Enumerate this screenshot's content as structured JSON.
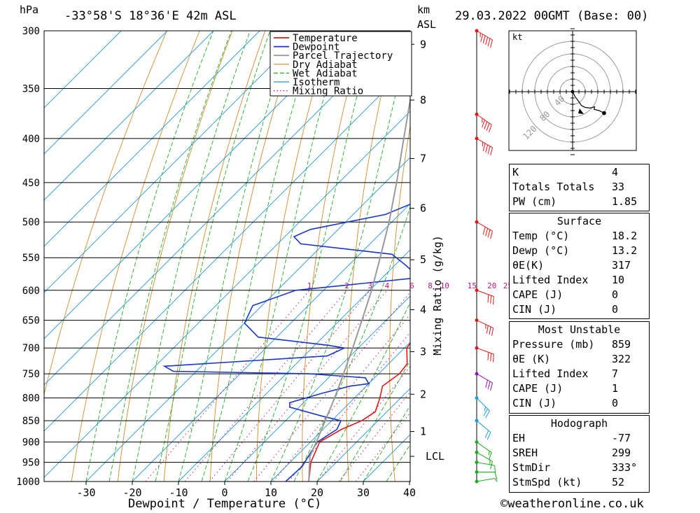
{
  "header": {
    "hpa_label": "hPa",
    "location": "-33°58'S 18°36'E 42m ASL",
    "km_label": "km",
    "asl_label": "ASL",
    "datetime": "29.03.2022 00GMT (Base: 00)"
  },
  "footer": {
    "xlabel": "Dewpoint / Temperature (°C)",
    "copyright": "©weatheronline.co.uk"
  },
  "chart_data": {
    "type": "line",
    "title": "",
    "xlabel": "Dewpoint / Temperature (°C)",
    "ylabel": "hPa",
    "y_scale": "log",
    "x_ticks": [
      -30,
      -20,
      -10,
      0,
      10,
      20,
      30,
      40
    ],
    "pressure_ticks": [
      300,
      350,
      400,
      450,
      500,
      550,
      600,
      650,
      700,
      750,
      800,
      850,
      900,
      950,
      1000
    ],
    "km_ticks": [
      {
        "p": 875,
        "label": "1"
      },
      {
        "p": 792,
        "label": "2"
      },
      {
        "p": 707,
        "label": "3"
      },
      {
        "p": 632,
        "label": "4"
      },
      {
        "p": 553,
        "label": "5"
      },
      {
        "p": 482,
        "label": "6"
      },
      {
        "p": 422,
        "label": "7"
      },
      {
        "p": 361,
        "label": "8"
      },
      {
        "p": 311,
        "label": "9"
      }
    ],
    "lcl": {
      "p": 935,
      "label": "LCL"
    },
    "mixing_ratio_axis_label": "Mixing Ratio (g/kg)",
    "mixing_ratio_values": [
      1,
      2,
      3,
      4,
      6,
      8,
      10,
      15,
      20,
      25
    ],
    "legend": [
      "Temperature",
      "Dewpoint",
      "Parcel Trajectory",
      "Dry Adiabat",
      "Wet Adiabat",
      "Isotherm",
      "Mixing Ratio"
    ],
    "series": [
      {
        "name": "Temperature",
        "color": "#e01818",
        "points": [
          [
            1000,
            18.2
          ],
          [
            950,
            14.5
          ],
          [
            900,
            12.0
          ],
          [
            870,
            14.0
          ],
          [
            850,
            16.5
          ],
          [
            830,
            17.5
          ],
          [
            800,
            15.5
          ],
          [
            775,
            13.5
          ],
          [
            750,
            14.5
          ],
          [
            730,
            14.0
          ],
          [
            700,
            10.5
          ],
          [
            650,
            9.0
          ],
          [
            600,
            5.5
          ],
          [
            580,
            4.0
          ],
          [
            550,
            2.0
          ],
          [
            520,
            0.5
          ],
          [
            500,
            -2.5
          ],
          [
            470,
            -6.5
          ],
          [
            450,
            -9.0
          ],
          [
            400,
            -14.5
          ],
          [
            350,
            -22.0
          ],
          [
            300,
            -30.5
          ]
        ]
      },
      {
        "name": "Dewpoint",
        "color": "#1836c8",
        "points": [
          [
            1000,
            13.2
          ],
          [
            960,
            13.5
          ],
          [
            930,
            12.5
          ],
          [
            900,
            11.5
          ],
          [
            870,
            13.0
          ],
          [
            850,
            12.0
          ],
          [
            840,
            7.0
          ],
          [
            820,
            -2.0
          ],
          [
            810,
            -3.0
          ],
          [
            790,
            2.0
          ],
          [
            775,
            6.5
          ],
          [
            770,
            10.0
          ],
          [
            758,
            8.0
          ],
          [
            750,
            -5.0
          ],
          [
            745,
            -35.0
          ],
          [
            735,
            -38.0
          ],
          [
            715,
            -5.0
          ],
          [
            700,
            -3.0
          ],
          [
            695,
            -7.0
          ],
          [
            680,
            -24.0
          ],
          [
            655,
            -30.0
          ],
          [
            625,
            -32.0
          ],
          [
            600,
            -26.0
          ],
          [
            580,
            -2.0
          ],
          [
            560,
            -8.0
          ],
          [
            545,
            -13.0
          ],
          [
            530,
            -35.0
          ],
          [
            520,
            -38.0
          ],
          [
            510,
            -36.0
          ],
          [
            490,
            -23.0
          ],
          [
            465,
            -17.0
          ],
          [
            440,
            -23.0
          ],
          [
            400,
            -32.0
          ],
          [
            375,
            -31.0
          ],
          [
            350,
            -35.0
          ],
          [
            330,
            -25.0
          ],
          [
            315,
            -33.0
          ],
          [
            300,
            -23.0
          ]
        ]
      },
      {
        "name": "Parcel Trajectory",
        "color": "#9a9a9a",
        "points": [
          [
            1000,
            18.2
          ],
          [
            935,
            13.0
          ],
          [
            900,
            11.3
          ],
          [
            850,
            8.6
          ],
          [
            800,
            5.7
          ],
          [
            750,
            2.4
          ],
          [
            700,
            -1.2
          ],
          [
            650,
            -5.2
          ],
          [
            600,
            -9.6
          ],
          [
            550,
            -14.8
          ],
          [
            500,
            -20.6
          ],
          [
            450,
            -27.5
          ],
          [
            400,
            -35.5
          ],
          [
            350,
            -44.5
          ],
          [
            300,
            -55.0
          ]
        ]
      }
    ],
    "wind_barbs": [
      {
        "p": 1000,
        "dir": 260,
        "kt": 8
      },
      {
        "p": 975,
        "dir": 270,
        "kt": 10
      },
      {
        "p": 950,
        "dir": 280,
        "kt": 12
      },
      {
        "p": 925,
        "dir": 300,
        "kt": 15
      },
      {
        "p": 900,
        "dir": 305,
        "kt": 18
      },
      {
        "p": 850,
        "dir": 310,
        "kt": 22
      },
      {
        "p": 800,
        "dir": 315,
        "kt": 25
      },
      {
        "p": 750,
        "dir": 300,
        "kt": 30
      },
      {
        "p": 700,
        "dir": 290,
        "kt": 32
      },
      {
        "p": 650,
        "dir": 295,
        "kt": 35
      },
      {
        "p": 600,
        "dir": 290,
        "kt": 30
      },
      {
        "p": 500,
        "dir": 300,
        "kt": 40
      },
      {
        "p": 400,
        "dir": 300,
        "kt": 45
      },
      {
        "p": 375,
        "dir": 305,
        "kt": 45
      },
      {
        "p": 300,
        "dir": 300,
        "kt": 55
      }
    ],
    "hodograph": {
      "unit": "kt",
      "ring_labels": [
        "40",
        "80",
        "120"
      ],
      "points": [
        [
          0,
          0
        ],
        [
          4,
          -8
        ],
        [
          10,
          -16
        ],
        [
          14,
          -22
        ],
        [
          20,
          -25
        ],
        [
          28,
          -26
        ],
        [
          35,
          -24
        ],
        [
          34,
          -28
        ],
        [
          42,
          -30
        ],
        [
          50,
          -34
        ]
      ]
    }
  },
  "stats": {
    "indices": [
      {
        "label": "K",
        "value": "4"
      },
      {
        "label": "Totals Totals",
        "value": "33"
      },
      {
        "label": "PW (cm)",
        "value": "1.85"
      }
    ],
    "surface_title": "Surface",
    "surface": [
      {
        "label": "Temp (°C)",
        "value": "18.2"
      },
      {
        "label": "Dewp (°C)",
        "value": "13.2"
      },
      {
        "label": "θE(K)",
        "value": "317"
      },
      {
        "label": "Lifted Index",
        "value": "10"
      },
      {
        "label": "CAPE (J)",
        "value": "0"
      },
      {
        "label": "CIN (J)",
        "value": "0"
      }
    ],
    "mu_title": "Most Unstable",
    "mu": [
      {
        "label": "Pressure (mb)",
        "value": "859"
      },
      {
        "label": "θE (K)",
        "value": "322"
      },
      {
        "label": "Lifted Index",
        "value": "7"
      },
      {
        "label": "CAPE (J)",
        "value": "1"
      },
      {
        "label": "CIN (J)",
        "value": "0"
      }
    ],
    "hodo_title": "Hodograph",
    "hodo": [
      {
        "label": "EH",
        "value": "-77"
      },
      {
        "label": "SREH",
        "value": "299"
      },
      {
        "label": "StmDir",
        "value": "333°"
      },
      {
        "label": "StmSpd (kt)",
        "value": "52"
      }
    ]
  }
}
